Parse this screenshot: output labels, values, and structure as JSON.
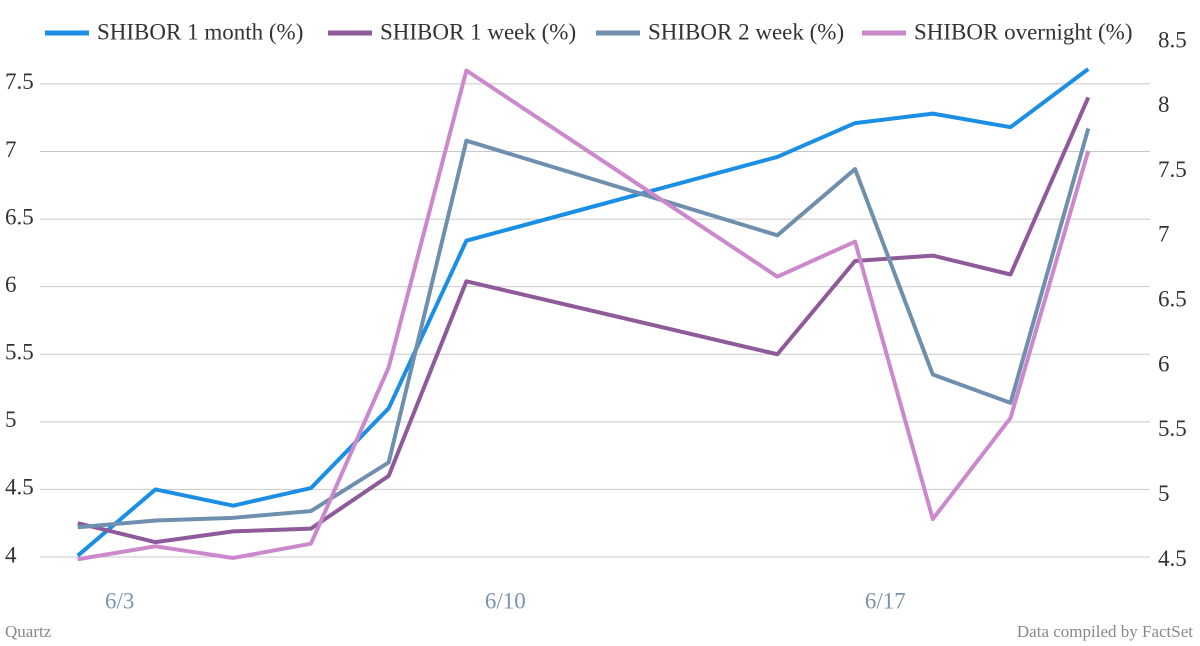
{
  "chart_data": {
    "type": "line",
    "x": [
      0,
      1,
      2,
      3,
      4,
      5,
      9,
      10,
      11,
      12,
      13
    ],
    "xlim": [
      -1,
      14
    ],
    "xticks": [
      {
        "value": 0.54,
        "label": "6/3"
      },
      {
        "value": 5.5,
        "label": "6/10"
      },
      {
        "value": 10.39,
        "label": "6/17"
      }
    ],
    "ylim": [
      3.83,
      7.81
    ],
    "yticks": [
      4,
      4.5,
      5,
      5.5,
      6,
      6.5,
      7,
      7.5
    ],
    "y2lim": [
      4.35,
      8.5
    ],
    "y2ticks": [
      4.5,
      5,
      5.5,
      6,
      6.5,
      7,
      7.5,
      8,
      8.5
    ],
    "grid": true,
    "legend": "top",
    "series": [
      {
        "name": "SHIBOR 1 month (%)",
        "color": "#1a8fe3",
        "values": [
          4.01,
          4.5,
          4.38,
          4.51,
          5.1,
          6.34,
          6.96,
          7.21,
          7.28,
          7.18,
          7.61
        ]
      },
      {
        "name": "SHIBOR 1 week (%)",
        "color": "#8e5a9a",
        "values": [
          4.25,
          4.11,
          4.19,
          4.21,
          4.6,
          6.04,
          5.5,
          6.19,
          6.23,
          6.09,
          7.4
        ]
      },
      {
        "name": "SHIBOR 2 week (%)",
        "color": "#6f8fae",
        "values": [
          4.22,
          4.27,
          4.29,
          4.34,
          4.7,
          7.08,
          6.38,
          6.87,
          5.35,
          5.14,
          7.17
        ]
      },
      {
        "name": "SHIBOR overnight (%)",
        "color": "#cc88cc",
        "axis": "y2",
        "values": [
          4.51,
          4.61,
          4.52,
          4.63,
          5.99,
          8.28,
          6.69,
          6.96,
          4.82,
          5.6,
          7.66
        ]
      }
    ],
    "source_left": "Quartz",
    "source_right": "Data compiled by FactSet"
  }
}
